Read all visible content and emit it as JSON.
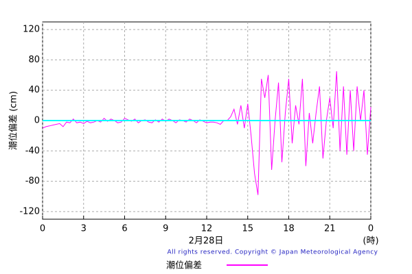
{
  "chart_data": {
    "type": "line",
    "ylabel": "潮位偏差 (cm)",
    "xlabel": "2月28日",
    "xunit": "(時)",
    "copyright": "All rights reserved. Copyright © Japan Meteorological Agency",
    "xlim": [
      0,
      24
    ],
    "ylim": [
      -130,
      130
    ],
    "xticks": [
      0,
      3,
      6,
      9,
      12,
      15,
      18,
      21,
      {
        "value": 24,
        "label": "0"
      }
    ],
    "yticks": [
      -120,
      -80,
      -40,
      0,
      40,
      80,
      120
    ],
    "grid": true,
    "reference_line": {
      "value": 0,
      "color": "#00ffff"
    },
    "x": [
      0,
      0.25,
      0.5,
      0.75,
      1,
      1.25,
      1.5,
      1.75,
      2,
      2.25,
      2.5,
      2.75,
      3,
      3.25,
      3.5,
      3.75,
      4,
      4.25,
      4.5,
      4.75,
      5,
      5.25,
      5.5,
      5.75,
      6,
      6.25,
      6.5,
      6.75,
      7,
      7.25,
      7.5,
      7.75,
      8,
      8.25,
      8.5,
      8.75,
      9,
      9.25,
      9.5,
      9.75,
      10,
      10.25,
      10.5,
      10.75,
      11,
      11.25,
      11.5,
      11.75,
      12,
      12.25,
      12.5,
      12.75,
      13,
      13.25,
      13.5,
      13.75,
      14,
      14.25,
      14.5,
      14.75,
      15,
      15.25,
      15.5,
      15.75,
      16,
      16.25,
      16.5,
      16.75,
      17,
      17.25,
      17.5,
      17.75,
      18,
      18.25,
      18.5,
      18.75,
      19,
      19.25,
      19.5,
      19.75,
      20,
      20.25,
      20.5,
      20.75,
      21,
      21.25,
      21.5,
      21.75,
      22,
      22.25,
      22.5,
      22.75,
      23,
      23.25,
      23.5,
      23.75,
      24
    ],
    "series": [
      {
        "name": "潮位偏差",
        "color": "#ff00ff",
        "values": [
          -10,
          -8,
          -7,
          -6,
          -5,
          -4,
          -8,
          -2,
          -3,
          2,
          -3,
          -2,
          -4,
          -1,
          -3,
          -2,
          0,
          -2,
          3,
          -1,
          2,
          0,
          -3,
          -2,
          3,
          1,
          -1,
          2,
          -3,
          0,
          1,
          -2,
          -3,
          1,
          -2,
          2,
          -1,
          2,
          0,
          -3,
          1,
          0,
          -2,
          2,
          0,
          -3,
          1,
          -1,
          -3,
          -2,
          -2,
          -3,
          -5,
          0,
          0,
          5,
          15,
          -5,
          20,
          -10,
          22,
          -20,
          -70,
          -98,
          55,
          30,
          60,
          -65,
          0,
          50,
          -55,
          10,
          55,
          -30,
          20,
          -5,
          55,
          -60,
          10,
          -30,
          10,
          45,
          -50,
          0,
          30,
          -10,
          65,
          -40,
          45,
          -45,
          40,
          -40,
          45,
          0,
          40,
          -45,
          18
        ]
      }
    ]
  }
}
